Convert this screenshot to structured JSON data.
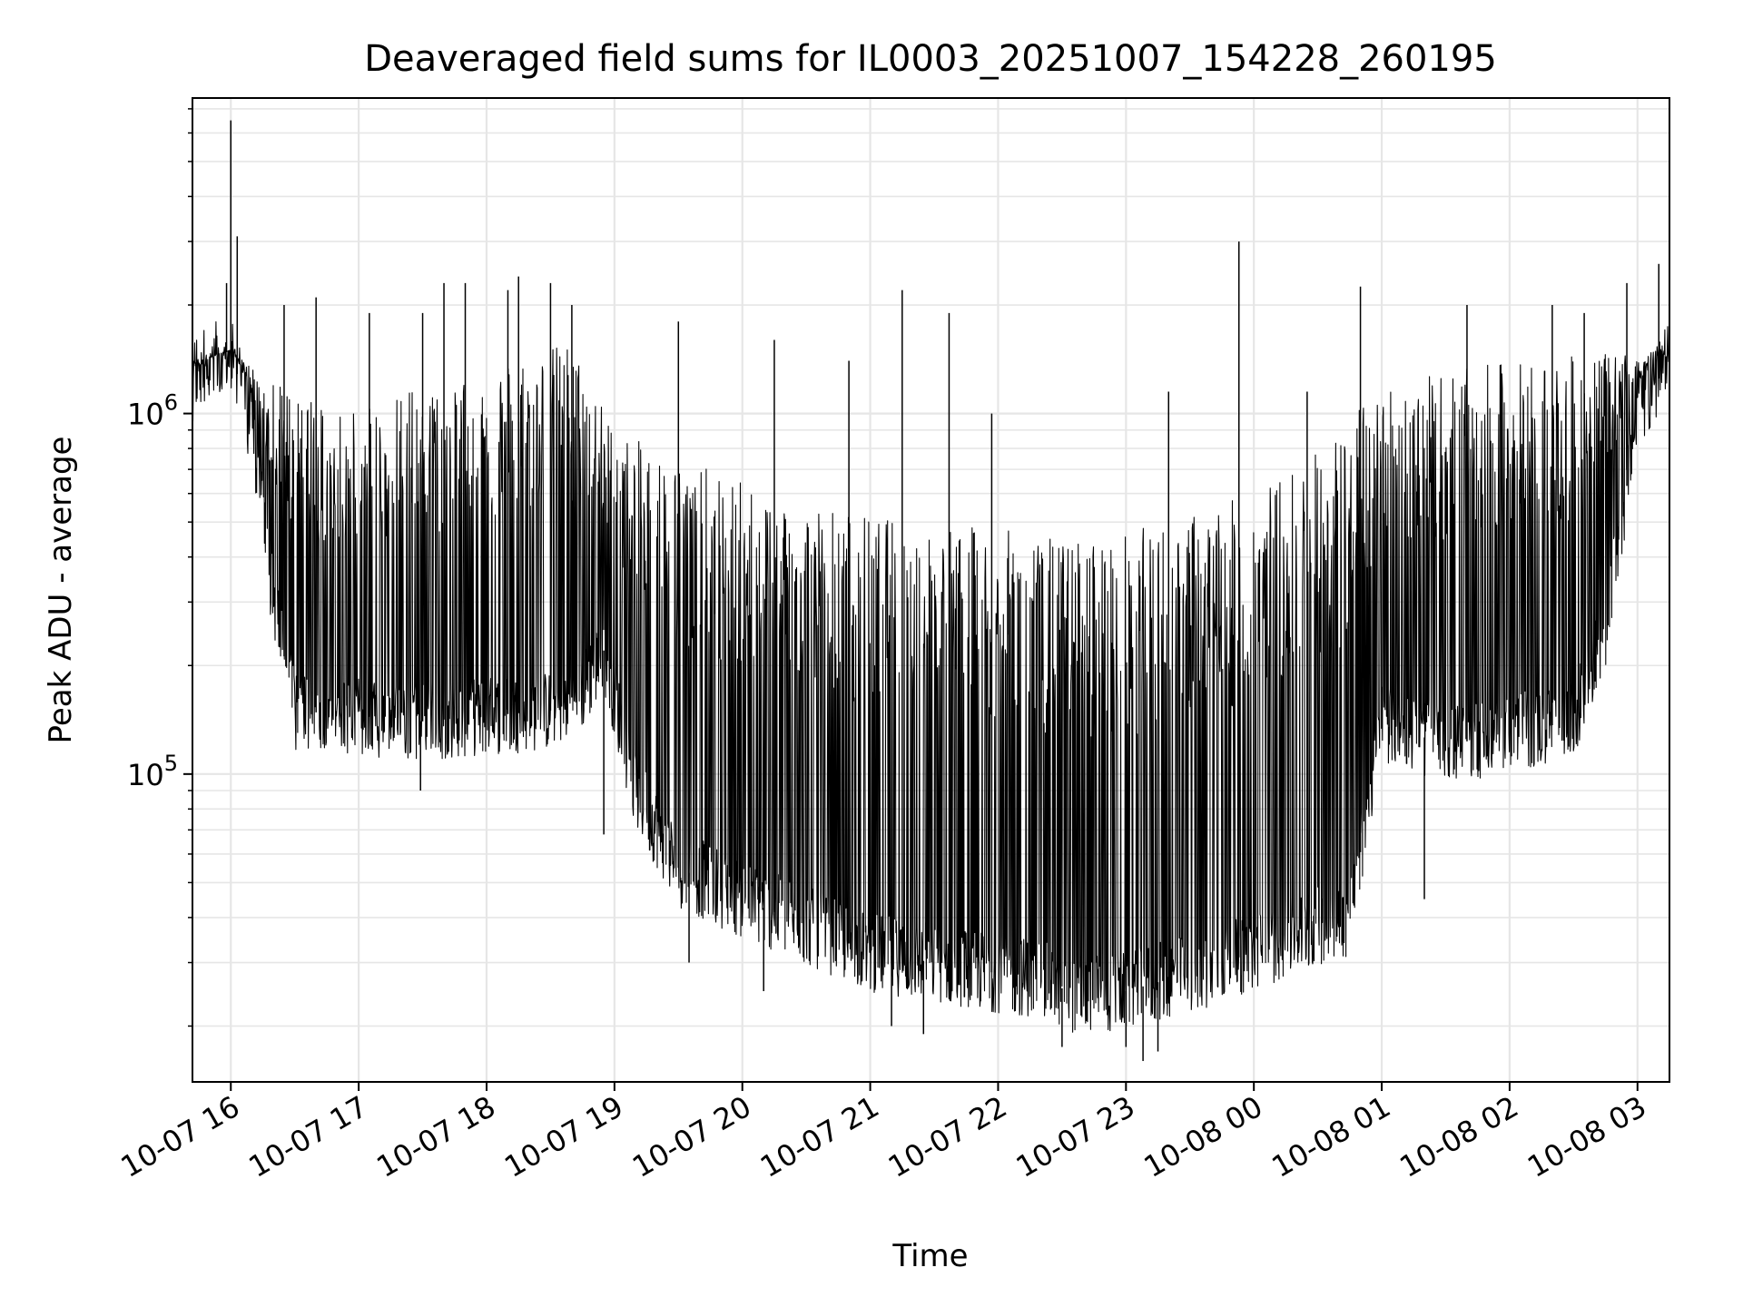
{
  "chart_data": {
    "type": "line",
    "title": "Deaveraged field sums for IL0003_20251007_154228_260195",
    "xlabel": "Time",
    "ylabel": "Peak ADU - average",
    "x_axis": "datetime",
    "y_scale": "log",
    "xlim": [
      "2025-10-07 15:42",
      "2025-10-08 03:15"
    ],
    "ylim": [
      14000,
      7500000
    ],
    "grid": true,
    "legend": "none",
    "line_color": "#000000",
    "x_ticks": [
      {
        "value": "2025-10-07 16:00",
        "label": "10-07 16"
      },
      {
        "value": "2025-10-07 17:00",
        "label": "10-07 17"
      },
      {
        "value": "2025-10-07 18:00",
        "label": "10-07 18"
      },
      {
        "value": "2025-10-07 19:00",
        "label": "10-07 19"
      },
      {
        "value": "2025-10-07 20:00",
        "label": "10-07 20"
      },
      {
        "value": "2025-10-07 21:00",
        "label": "10-07 21"
      },
      {
        "value": "2025-10-07 22:00",
        "label": "10-07 22"
      },
      {
        "value": "2025-10-07 23:00",
        "label": "10-07 23"
      },
      {
        "value": "2025-10-08 00:00",
        "label": "10-08 00"
      },
      {
        "value": "2025-10-08 01:00",
        "label": "10-08 01"
      },
      {
        "value": "2025-10-08 02:00",
        "label": "10-08 02"
      },
      {
        "value": "2025-10-08 03:00",
        "label": "10-08 03"
      }
    ],
    "y_ticks": [
      {
        "value": 100000,
        "base": "10",
        "exp": "5"
      },
      {
        "value": 1000000,
        "base": "10",
        "exp": "6"
      }
    ],
    "series": [
      {
        "baseline": {
          "x": [
            "2025-10-07 15:42",
            "2025-10-07 15:50",
            "2025-10-07 16:00",
            "2025-10-07 16:10",
            "2025-10-07 16:20",
            "2025-10-07 16:30",
            "2025-10-07 17:00",
            "2025-10-07 17:30",
            "2025-10-07 18:00",
            "2025-10-07 18:30",
            "2025-10-07 18:45",
            "2025-10-07 18:55",
            "2025-10-07 19:10",
            "2025-10-07 19:30",
            "2025-10-07 20:00",
            "2025-10-07 20:30",
            "2025-10-07 21:00",
            "2025-10-07 21:30",
            "2025-10-07 22:00",
            "2025-10-07 22:20",
            "2025-10-07 22:40",
            "2025-10-07 23:00",
            "2025-10-07 23:30",
            "2025-10-08 00:00",
            "2025-10-08 00:30",
            "2025-10-08 00:45",
            "2025-10-08 01:00",
            "2025-10-08 01:30",
            "2025-10-08 02:00",
            "2025-10-08 02:30",
            "2025-10-08 02:45",
            "2025-10-08 03:00",
            "2025-10-08 03:15"
          ],
          "y": [
            1200000,
            1400000,
            1500000,
            900000,
            300000,
            150000,
            145000,
            140000,
            145000,
            150000,
            170000,
            220000,
            90000,
            55000,
            45000,
            38000,
            32000,
            30000,
            28000,
            27000,
            24000,
            25000,
            28000,
            32000,
            38000,
            40000,
            140000,
            120000,
            130000,
            140000,
            250000,
            1000000,
            1400000
          ]
        },
        "upper_envelope": {
          "x": [
            "2025-10-07 15:42",
            "2025-10-07 16:00",
            "2025-10-07 16:20",
            "2025-10-07 17:00",
            "2025-10-07 18:00",
            "2025-10-07 18:40",
            "2025-10-07 19:00",
            "2025-10-07 19:30",
            "2025-10-07 20:00",
            "2025-10-07 21:00",
            "2025-10-07 22:00",
            "2025-10-07 22:30",
            "2025-10-07 23:00",
            "2025-10-08 00:00",
            "2025-10-08 00:30",
            "2025-10-08 01:00",
            "2025-10-08 02:00",
            "2025-10-08 03:15"
          ],
          "y": [
            1400000,
            1500000,
            1200000,
            1000000,
            1400000,
            1600000,
            900000,
            750000,
            650000,
            520000,
            480000,
            450000,
            470000,
            600000,
            800000,
            1200000,
            1400000,
            1500000
          ]
        },
        "spikes": [
          {
            "x": "2025-10-07 16:00",
            "y": 6500000
          },
          {
            "x": "2025-10-07 16:03",
            "y": 3100000
          },
          {
            "x": "2025-10-07 15:58",
            "y": 2300000
          },
          {
            "x": "2025-10-07 16:25",
            "y": 2000000
          },
          {
            "x": "2025-10-07 16:40",
            "y": 2100000
          },
          {
            "x": "2025-10-07 17:05",
            "y": 1900000
          },
          {
            "x": "2025-10-07 17:30",
            "y": 1900000
          },
          {
            "x": "2025-10-07 17:40",
            "y": 2300000
          },
          {
            "x": "2025-10-07 17:50",
            "y": 2300000
          },
          {
            "x": "2025-10-07 18:10",
            "y": 2200000
          },
          {
            "x": "2025-10-07 18:15",
            "y": 2400000
          },
          {
            "x": "2025-10-07 18:30",
            "y": 2300000
          },
          {
            "x": "2025-10-07 18:40",
            "y": 2000000
          },
          {
            "x": "2025-10-07 19:30",
            "y": 1800000
          },
          {
            "x": "2025-10-07 20:15",
            "y": 1600000
          },
          {
            "x": "2025-10-07 20:50",
            "y": 1400000
          },
          {
            "x": "2025-10-07 21:15",
            "y": 2200000
          },
          {
            "x": "2025-10-07 21:37",
            "y": 1900000
          },
          {
            "x": "2025-10-07 21:57",
            "y": 1000000
          },
          {
            "x": "2025-10-07 23:20",
            "y": 1150000
          },
          {
            "x": "2025-10-07 23:53",
            "y": 3000000
          },
          {
            "x": "2025-10-08 00:25",
            "y": 1150000
          },
          {
            "x": "2025-10-08 00:50",
            "y": 2250000
          },
          {
            "x": "2025-10-08 01:40",
            "y": 2000000
          },
          {
            "x": "2025-10-08 02:20",
            "y": 2000000
          },
          {
            "x": "2025-10-08 02:35",
            "y": 1900000
          },
          {
            "x": "2025-10-08 02:55",
            "y": 2300000
          },
          {
            "x": "2025-10-08 03:10",
            "y": 2600000
          }
        ],
        "dips": [
          {
            "x": "2025-10-07 17:29",
            "y": 90000
          },
          {
            "x": "2025-10-07 18:55",
            "y": 68000
          },
          {
            "x": "2025-10-07 19:35",
            "y": 30000
          },
          {
            "x": "2025-10-07 20:10",
            "y": 25000
          },
          {
            "x": "2025-10-07 21:10",
            "y": 20000
          },
          {
            "x": "2025-10-07 21:25",
            "y": 19000
          },
          {
            "x": "2025-10-07 22:30",
            "y": 17500
          },
          {
            "x": "2025-10-07 23:00",
            "y": 17500
          },
          {
            "x": "2025-10-07 23:08",
            "y": 16000
          },
          {
            "x": "2025-10-07 23:15",
            "y": 17000
          },
          {
            "x": "2025-10-08 01:20",
            "y": 45000
          }
        ]
      }
    ]
  }
}
